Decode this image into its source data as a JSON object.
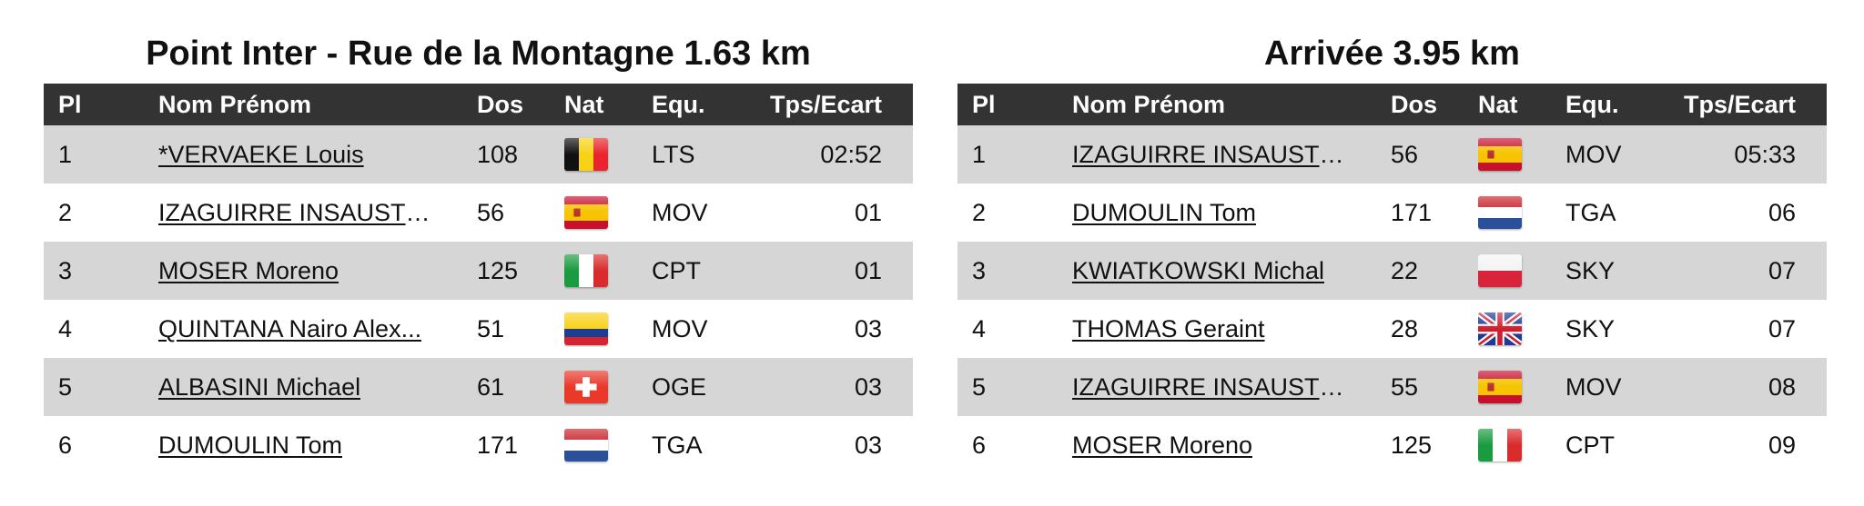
{
  "tables": [
    {
      "title": "Point Inter - Rue de la Montagne 1.63 km",
      "headers": [
        "Pl",
        "Nom Prénom",
        "Dos",
        "Nat",
        "Equ.",
        "Tps/Ecart"
      ],
      "rows": [
        {
          "pl": "1",
          "name": "*VERVAEKE Louis",
          "dos": "108",
          "nat": "belgium-flag-icon",
          "equ": "LTS",
          "tps": "02:52"
        },
        {
          "pl": "2",
          "name": "IZAGUIRRE INSAUSTI ...",
          "dos": "56",
          "nat": "spain-flag-icon",
          "equ": "MOV",
          "tps": "01"
        },
        {
          "pl": "3",
          "name": "MOSER Moreno",
          "dos": "125",
          "nat": "italy-flag-icon",
          "equ": "CPT",
          "tps": "01"
        },
        {
          "pl": "4",
          "name": "QUINTANA Nairo Alex...",
          "dos": "51",
          "nat": "colombia-flag-icon",
          "equ": "MOV",
          "tps": "03"
        },
        {
          "pl": "5",
          "name": "ALBASINI Michael",
          "dos": "61",
          "nat": "switzerland-flag-icon",
          "equ": "OGE",
          "tps": "03"
        },
        {
          "pl": "6",
          "name": "DUMOULIN Tom",
          "dos": "171",
          "nat": "netherlands-flag-icon",
          "equ": "TGA",
          "tps": "03"
        }
      ]
    },
    {
      "title": "Arrivée 3.95 km",
      "headers": [
        "Pl",
        "Nom Prénom",
        "Dos",
        "Nat",
        "Equ.",
        "Tps/Ecart"
      ],
      "rows": [
        {
          "pl": "1",
          "name": "IZAGUIRRE INSAUSTI ...",
          "dos": "56",
          "nat": "spain-flag-icon",
          "equ": "MOV",
          "tps": "05:33"
        },
        {
          "pl": "2",
          "name": "DUMOULIN Tom",
          "dos": "171",
          "nat": "netherlands-flag-icon",
          "equ": "TGA",
          "tps": "06"
        },
        {
          "pl": "3",
          "name": "KWIATKOWSKI Michal",
          "dos": "22",
          "nat": "poland-flag-icon",
          "equ": "SKY",
          "tps": "07"
        },
        {
          "pl": "4",
          "name": "THOMAS Geraint",
          "dos": "28",
          "nat": "uk-flag-icon",
          "equ": "SKY",
          "tps": "07"
        },
        {
          "pl": "5",
          "name": "IZAGUIRRE INSAUSTI ...",
          "dos": "55",
          "nat": "spain-flag-icon",
          "equ": "MOV",
          "tps": "08"
        },
        {
          "pl": "6",
          "name": "MOSER Moreno",
          "dos": "125",
          "nat": "italy-flag-icon",
          "equ": "CPT",
          "tps": "09"
        }
      ]
    }
  ],
  "colors": {
    "header_bg": "#333333",
    "row_alt_bg": "#d6d6d6"
  }
}
